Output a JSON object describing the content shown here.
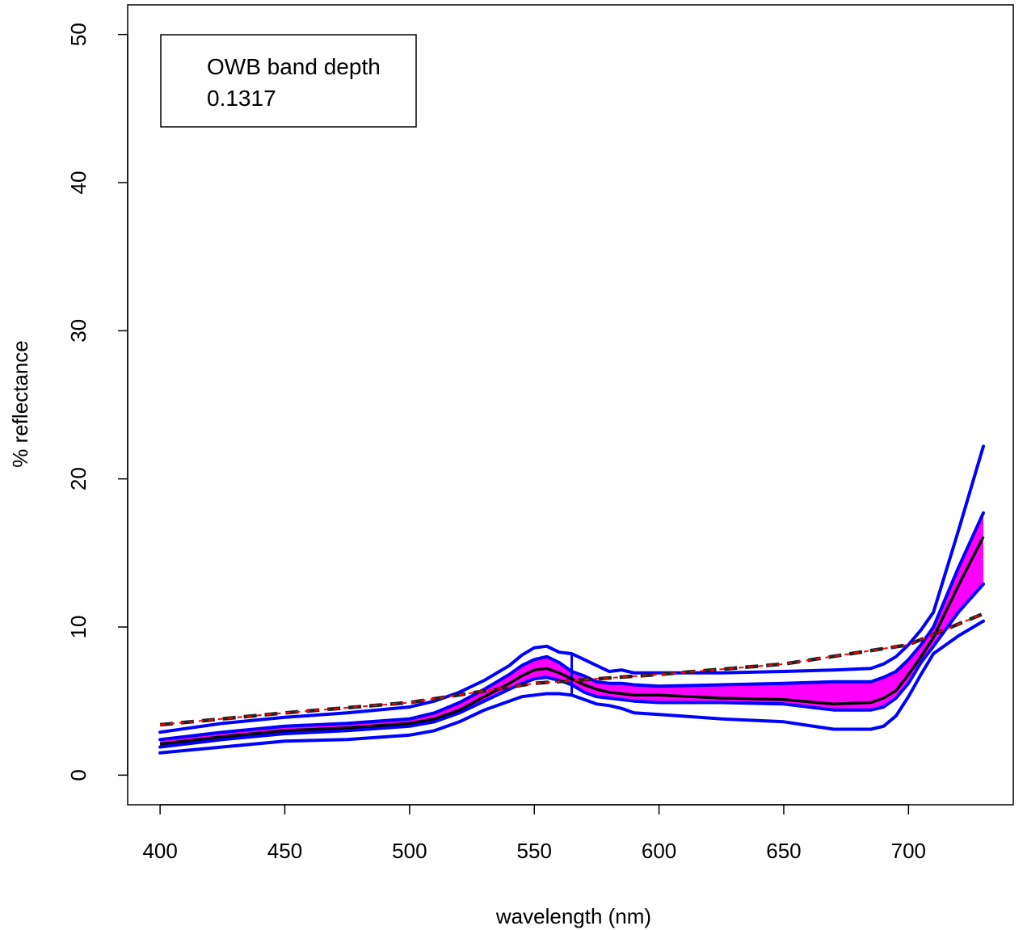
{
  "chart_data": {
    "type": "line",
    "xlabel": "wavelength (nm)",
    "ylabel": "% reflectance",
    "xlim": [
      387,
      742
    ],
    "ylim": [
      -2,
      52
    ],
    "x_ticks": [
      400,
      450,
      500,
      550,
      600,
      650,
      700
    ],
    "y_ticks": [
      0,
      10,
      20,
      30,
      40,
      50
    ],
    "grid": false,
    "legend": {
      "position": "top-left",
      "lines": [
        "OWB band depth",
        "0.1317"
      ]
    },
    "colors": {
      "band": "#ff00ff",
      "envelope": "#0000ff",
      "mean": "#000000",
      "hull_dashed": "#222222",
      "hull_dotted": "#ff0000"
    },
    "x": [
      400,
      425,
      450,
      475,
      500,
      510,
      520,
      530,
      540,
      545,
      550,
      555,
      560,
      565,
      570,
      575,
      580,
      585,
      590,
      600,
      625,
      650,
      670,
      685,
      690,
      695,
      700,
      705,
      710,
      720,
      730
    ],
    "series": [
      {
        "role": "outer-upper",
        "values": [
          2.9,
          3.5,
          3.9,
          4.2,
          4.6,
          5.0,
          5.6,
          6.4,
          7.4,
          8.1,
          8.6,
          8.7,
          8.3,
          8.2,
          7.8,
          7.4,
          7.0,
          7.1,
          6.9,
          6.9,
          6.9,
          7.0,
          7.1,
          7.2,
          7.5,
          8.0,
          8.8,
          9.8,
          11.0,
          16.5,
          22.2
        ]
      },
      {
        "role": "band-upper",
        "values": [
          2.4,
          2.9,
          3.3,
          3.5,
          3.8,
          4.2,
          4.9,
          5.8,
          6.8,
          7.4,
          7.8,
          8.0,
          7.6,
          7.0,
          6.7,
          6.3,
          6.2,
          6.2,
          6.1,
          6.0,
          6.1,
          6.2,
          6.3,
          6.3,
          6.6,
          7.0,
          7.8,
          8.8,
          10.0,
          14.0,
          17.7
        ]
      },
      {
        "role": "mean",
        "values": [
          2.1,
          2.6,
          3.0,
          3.2,
          3.5,
          3.8,
          4.4,
          5.3,
          6.2,
          6.7,
          7.1,
          7.2,
          6.9,
          6.5,
          6.1,
          5.8,
          5.6,
          5.5,
          5.4,
          5.4,
          5.2,
          5.1,
          4.8,
          4.9,
          5.2,
          5.7,
          6.8,
          8.0,
          9.3,
          12.8,
          16.1
        ]
      },
      {
        "role": "band-lower",
        "values": [
          1.9,
          2.4,
          2.8,
          3.0,
          3.3,
          3.6,
          4.2,
          5.0,
          5.8,
          6.2,
          6.5,
          6.6,
          6.4,
          6.1,
          5.6,
          5.3,
          5.2,
          5.1,
          5.0,
          4.9,
          4.9,
          4.8,
          4.4,
          4.4,
          4.6,
          5.2,
          6.2,
          7.6,
          8.7,
          11.0,
          12.9
        ]
      },
      {
        "role": "outer-lower",
        "values": [
          1.5,
          1.9,
          2.3,
          2.4,
          2.7,
          3.0,
          3.6,
          4.4,
          5.0,
          5.3,
          5.4,
          5.5,
          5.5,
          5.4,
          5.1,
          4.8,
          4.7,
          4.5,
          4.2,
          4.1,
          3.8,
          3.6,
          3.1,
          3.1,
          3.3,
          4.0,
          5.3,
          6.8,
          8.2,
          9.4,
          10.4
        ]
      }
    ],
    "hull": {
      "x": [
        400,
        450,
        500,
        550,
        600,
        650,
        700,
        730
      ],
      "values": [
        3.4,
        4.2,
        4.9,
        6.2,
        6.8,
        7.5,
        8.8,
        10.9
      ]
    },
    "marker": {
      "x": 565,
      "from": 5.4,
      "to": 8.2
    }
  }
}
